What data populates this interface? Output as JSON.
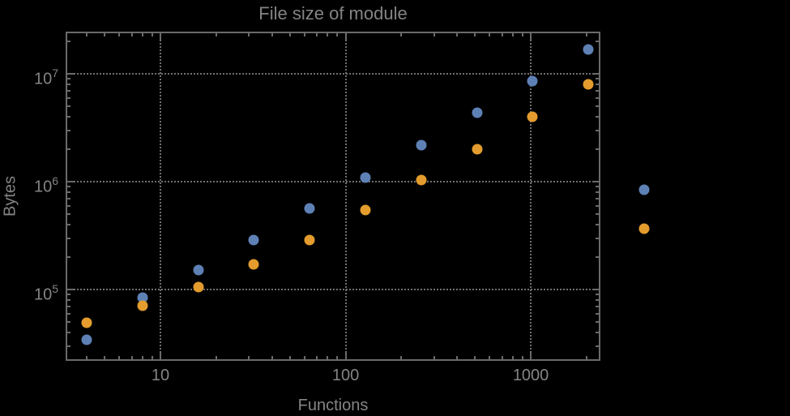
{
  "chart_data": {
    "type": "scatter",
    "title": "File size of module",
    "xlabel": "Functions",
    "ylabel": "Bytes",
    "x_scale": "log",
    "y_scale": "log",
    "xlim": [
      3.107,
      2353
    ],
    "ylim": [
      22180,
      24180000
    ],
    "x_ticks": [
      10,
      100,
      1000
    ],
    "y_ticks": [
      100000,
      1000000,
      10000000
    ],
    "grid": "dotted gridlines at decade ticks, frame ticks on all four edges",
    "legend": "none",
    "series": [
      {
        "name": "blue",
        "color": "#5e81b5",
        "points": [
          [
            4,
            34000
          ],
          [
            8,
            84000
          ],
          [
            16,
            151000
          ],
          [
            32,
            290000
          ],
          [
            64,
            560000
          ],
          [
            128,
            1090000
          ],
          [
            256,
            2180000
          ],
          [
            512,
            4360000
          ],
          [
            1024,
            8560000
          ],
          [
            2048,
            16800000
          ],
          [
            4096,
            840000
          ]
        ]
      },
      {
        "name": "orange",
        "color": "#e39c2d",
        "points": [
          [
            4,
            49000
          ],
          [
            8,
            71000
          ],
          [
            16,
            106000
          ],
          [
            32,
            170000
          ],
          [
            64,
            287000
          ],
          [
            128,
            545000
          ],
          [
            256,
            1040000
          ],
          [
            512,
            2000000
          ],
          [
            1024,
            4000000
          ],
          [
            2048,
            8000000
          ],
          [
            4096,
            366000
          ]
        ]
      }
    ]
  },
  "style": {
    "background": "#000000",
    "text_gray": "#848484",
    "frame_gray": "#6a6a6a",
    "grid_gray": "#6f6f6f",
    "series_blue": "#5e81b5",
    "series_orange": "#e39c2d"
  }
}
